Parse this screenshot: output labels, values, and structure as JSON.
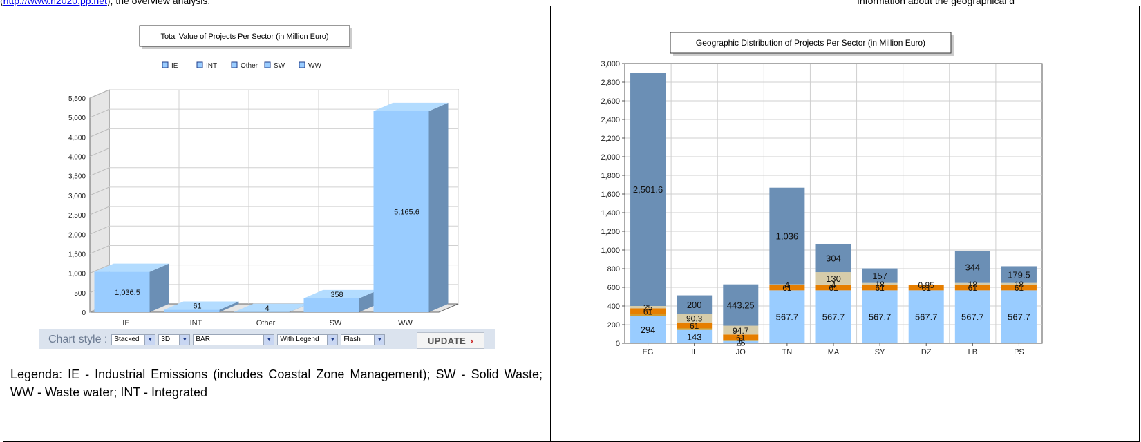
{
  "top_text": {
    "prefix": "(",
    "link": "http://www.h2020.pp.net",
    "suffix": "), the overview analysis.",
    "right": "Information about the geographical d"
  },
  "legenda": "Legenda: IE - Industrial Emissions (includes Coastal Zone Management); SW - Solid Waste; WW - Waste water; INT - Integrated",
  "chart_style": {
    "label": "Chart style :",
    "selects": [
      "Stacked",
      "3D",
      "BAR",
      "With Legend",
      "Flash"
    ],
    "update_label": "UPDATE",
    "update_icon": "chevron-right-icon"
  },
  "chart_data": [
    {
      "type": "bar",
      "style": "3d",
      "title": "Total Value of Projects Per Sector (in Million Euro)",
      "categories": [
        "IE",
        "INT",
        "Other",
        "SW",
        "WW"
      ],
      "values": [
        1036.5,
        61,
        4,
        358,
        5165.6
      ],
      "value_labels": [
        "1,036.5",
        "61",
        "4",
        "358",
        "5,165.6"
      ],
      "legend": [
        "IE",
        "INT",
        "Other",
        "SW",
        "WW"
      ],
      "legend_placement": "top",
      "ylim": [
        0,
        5500
      ],
      "yticks": [
        "0",
        "500",
        "1,000",
        "1,500",
        "2,000",
        "2,500",
        "3,000",
        "3,500",
        "4,000",
        "4,500",
        "5,000",
        "5,500"
      ],
      "grid": true,
      "colors": {
        "front": "#99ccff",
        "side": "#6b8fb5",
        "top": "#b3dcff",
        "legend": "#99ccff"
      }
    },
    {
      "type": "bar",
      "stacked": true,
      "title": "Geographic Distribution of Projects Per Sector (in Million Euro)",
      "categories": [
        "EG",
        "IL",
        "JO",
        "TN",
        "MA",
        "SY",
        "DZ",
        "LB",
        "PS"
      ],
      "ylim": [
        0,
        3000
      ],
      "yticks": [
        "0",
        "200",
        "400",
        "600",
        "800",
        "1,000",
        "1,200",
        "1,400",
        "1,600",
        "1,800",
        "2,000",
        "2,200",
        "2,400",
        "2,600",
        "2,800",
        "3,000"
      ],
      "grid": true,
      "segment_colors": [
        "#99ccff",
        "#d49a2a",
        "#e67e00",
        "#d6ccaa",
        "#6b8fb5"
      ],
      "stacks": [
        {
          "category": "EG",
          "segments": [
            294,
            20,
            61,
            0,
            25,
            2501.6
          ],
          "labels": [
            "294",
            "",
            "61",
            "",
            "25",
            "2,501.6"
          ]
        },
        {
          "category": "IL",
          "segments": [
            143,
            20,
            61,
            0,
            90.3,
            200
          ],
          "labels": [
            "143",
            "",
            "61",
            "",
            "90.3",
            "200"
          ]
        },
        {
          "category": "JO",
          "segments": [
            25,
            8,
            61,
            0,
            94.7,
            443.25
          ],
          "labels": [
            "25",
            "8",
            "61",
            "",
            "94.7",
            "443.25"
          ]
        },
        {
          "category": "TN",
          "segments": [
            567.7,
            0,
            61,
            4,
            0,
            1036
          ],
          "labels": [
            "567.7",
            "",
            "61",
            "4",
            "",
            "1,036"
          ]
        },
        {
          "category": "MA",
          "segments": [
            567.7,
            0,
            61,
            4,
            130,
            304
          ],
          "labels": [
            "567.7",
            "",
            "61",
            "4",
            "130",
            "304"
          ]
        },
        {
          "category": "SY",
          "segments": [
            567.7,
            0,
            61,
            18,
            0,
            157
          ],
          "labels": [
            "567.7",
            "",
            "61",
            "18",
            "",
            "157"
          ]
        },
        {
          "category": "DZ",
          "segments": [
            567.7,
            0,
            61,
            0.85,
            0,
            0
          ],
          "labels": [
            "567.7",
            "",
            "61",
            "0.85",
            "",
            ""
          ]
        },
        {
          "category": "LB",
          "segments": [
            567.7,
            0,
            61,
            18,
            0,
            344
          ],
          "labels": [
            "567.7",
            "",
            "61",
            "18",
            "",
            "344"
          ]
        },
        {
          "category": "PS",
          "segments": [
            567.7,
            0,
            61,
            18,
            0,
            179.5
          ],
          "labels": [
            "567.7",
            "",
            "61",
            "18",
            "",
            "179.5"
          ]
        }
      ]
    }
  ]
}
